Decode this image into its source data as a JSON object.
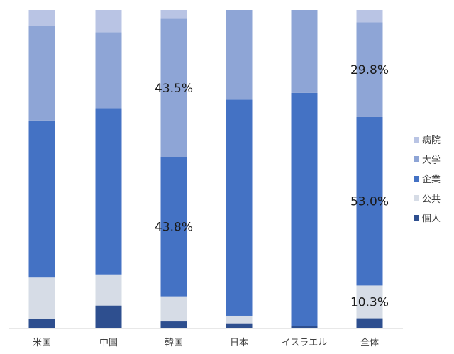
{
  "chart_data": {
    "type": "bar",
    "stacked": true,
    "normalized": true,
    "categories": [
      "米国",
      "中国",
      "韓国",
      "日本",
      "イスラエル",
      "全体"
    ],
    "series": [
      {
        "name": "個人",
        "color": "#2e4f8f",
        "values": [
          2.8,
          7.0,
          2.0,
          1.2,
          0.6,
          3.0
        ]
      },
      {
        "name": "公共",
        "color": "#d6dce6",
        "values": [
          13.0,
          9.8,
          7.9,
          2.6,
          0.0,
          10.3
        ]
      },
      {
        "name": "企業",
        "color": "#4472c4",
        "values": [
          49.4,
          52.3,
          43.8,
          68.0,
          73.3,
          53.0
        ]
      },
      {
        "name": "大学",
        "color": "#8ea5d6",
        "values": [
          29.8,
          23.9,
          43.5,
          28.2,
          26.1,
          29.8
        ]
      },
      {
        "name": "病院",
        "color": "#b9c4e4",
        "values": [
          5.0,
          7.0,
          2.8,
          0.0,
          0.0,
          3.9
        ]
      }
    ],
    "data_labels": [
      {
        "category": "韓国",
        "series": "大学",
        "text": "43.5%"
      },
      {
        "category": "韓国",
        "series": "企業",
        "text": "43.8%"
      },
      {
        "category": "全体",
        "series": "大学",
        "text": "29.8%"
      },
      {
        "category": "全体",
        "series": "企業",
        "text": "53.0%"
      },
      {
        "category": "全体",
        "series": "公共",
        "text": "10.3%"
      }
    ],
    "ylim": [
      0,
      100
    ],
    "grid": false,
    "legend_position": "right"
  }
}
